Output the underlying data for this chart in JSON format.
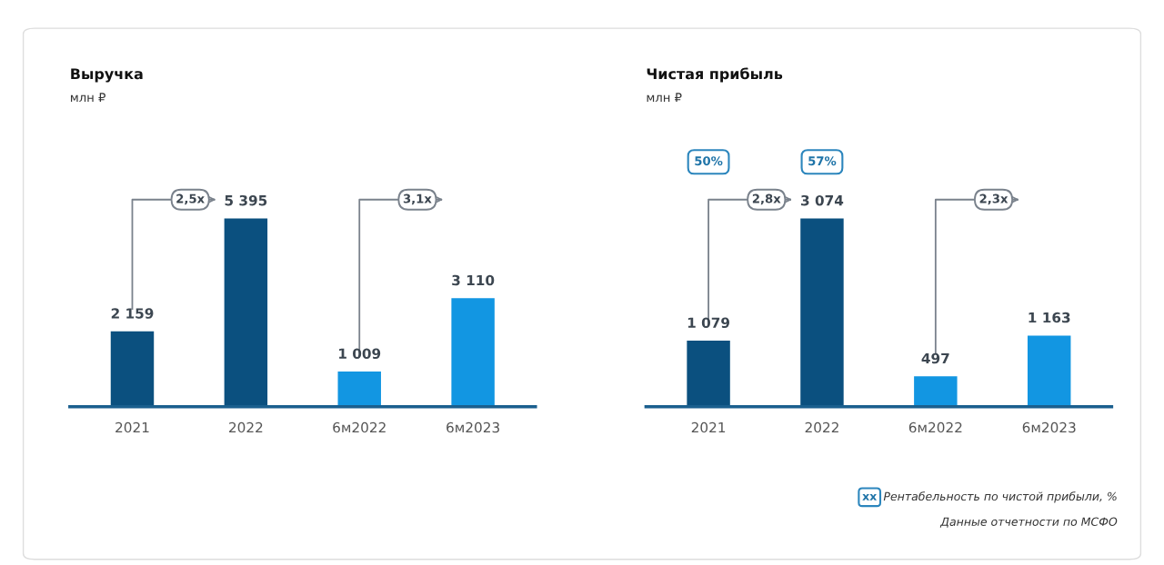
{
  "chart_data": [
    {
      "type": "bar",
      "title": "Выручка",
      "subtitle": "млн ₽",
      "categories": [
        "2021",
        "2022",
        "6м2022",
        "6м2023"
      ],
      "values": [
        2159,
        5395,
        1009,
        3110
      ],
      "colors": [
        "#0b507f",
        "#0b507f",
        "#1296e2",
        "#1296e2"
      ],
      "data_labels": true,
      "value_labels": [
        "2 159",
        "5 395",
        "1 009",
        "3 110"
      ],
      "annotations": [
        "2,5x",
        "3,1x"
      ]
    },
    {
      "type": "bar",
      "title": "Чистая прибыль",
      "subtitle": "млн ₽",
      "categories": [
        "2021",
        "2022",
        "6м2022",
        "6м2023"
      ],
      "values": [
        1079,
        3074,
        497,
        1163
      ],
      "colors": [
        "#0b507f",
        "#0b507f",
        "#1296e2",
        "#1296e2"
      ],
      "data_labels": true,
      "value_labels": [
        "1 079",
        "3 074",
        "497",
        "1 163"
      ],
      "annotations": [
        "2,8x",
        "2,3x",
        "50%",
        "57%",
        "xx",
        "Рентабельность по чистой прибыли, %",
        "Данные отчетности по МСФО"
      ]
    }
  ]
}
